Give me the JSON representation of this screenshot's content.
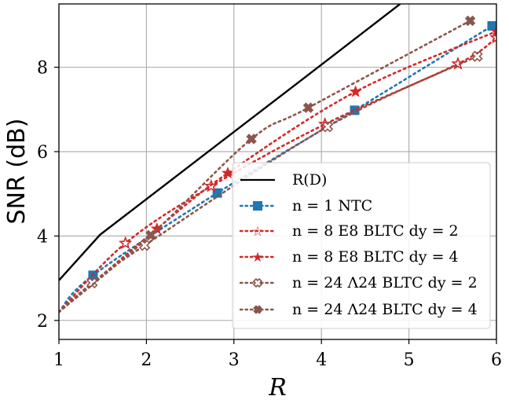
{
  "chart_data": {
    "type": "line",
    "xlabel": "R",
    "ylabel": "SNR (dB)",
    "xlim": [
      1,
      6
    ],
    "ylim": [
      1.55,
      9.5
    ],
    "xticks": [
      1,
      2,
      3,
      4,
      5,
      6
    ],
    "yticks": [
      2,
      4,
      6,
      8
    ],
    "grid": true,
    "legend_position": "lower-right",
    "series": [
      {
        "name": "R(D)",
        "color": "#000000",
        "style": "solid",
        "marker": "none",
        "x": [
          1.0,
          1.47,
          4.0,
          4.9
        ],
        "y": [
          2.95,
          4.03,
          8.06,
          9.5
        ]
      },
      {
        "name": "n = 1 NTC",
        "color": "#1f77b4",
        "style": "dotted",
        "marker": "square",
        "x": [
          1.0,
          1.39,
          2.81,
          4.38,
          5.95
        ],
        "y": [
          2.2,
          3.07,
          5.02,
          6.98,
          8.98
        ]
      },
      {
        "name": "n = 8 E8 BLTC dy = 2",
        "color": "#d62728",
        "style": "dotted",
        "marker": "star-open",
        "x": [
          1.0,
          1.76,
          2.74,
          4.04,
          5.56,
          6.0
        ],
        "y": [
          2.2,
          3.83,
          5.18,
          6.65,
          8.08,
          8.7
        ]
      },
      {
        "name": "n = 8 E8 BLTC dy = 4",
        "color": "#d62728",
        "style": "dotted",
        "marker": "star",
        "x": [
          1.0,
          2.12,
          2.93,
          4.39,
          6.0
        ],
        "y": [
          2.2,
          4.17,
          5.49,
          7.42,
          8.85
        ]
      },
      {
        "name": "n = 24 Λ24 BLTC dy = 2",
        "color": "#8c564b",
        "style": "dotted",
        "marker": "x-open",
        "x": [
          1.0,
          1.38,
          1.98,
          4.07,
          5.78
        ],
        "y": [
          2.2,
          2.89,
          3.78,
          6.59,
          8.26
        ]
      },
      {
        "name": "n = 24 Λ24 BLTC dy = 4",
        "color": "#8c564b",
        "style": "dotted",
        "marker": "x",
        "x": [
          1.0,
          2.05,
          3.2,
          3.85,
          5.7
        ],
        "y": [
          2.2,
          4.02,
          6.3,
          7.04,
          9.1
        ]
      }
    ]
  }
}
